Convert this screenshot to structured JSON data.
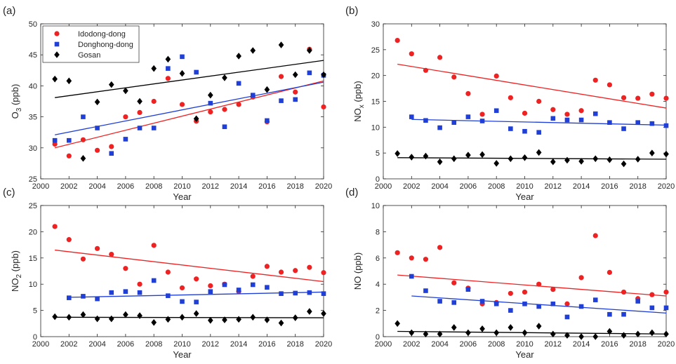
{
  "chart_data": [
    {
      "type": "scatter",
      "panel": "(a)",
      "xlabel": "Year",
      "ylabel": {
        "base": "O",
        "sub": "3",
        "rest": " (ppb)"
      },
      "xlim": [
        2000,
        2020
      ],
      "ylim": [
        25,
        50
      ],
      "xticks": [
        2000,
        2002,
        2004,
        2006,
        2008,
        2010,
        2012,
        2014,
        2016,
        2018,
        2020
      ],
      "yticks": [
        25,
        30,
        35,
        40,
        45,
        50
      ],
      "legend": {
        "position": "top-left"
      },
      "x": [
        2001,
        2002,
        2003,
        2004,
        2005,
        2006,
        2007,
        2008,
        2009,
        2010,
        2011,
        2012,
        2013,
        2014,
        2015,
        2016,
        2017,
        2018,
        2019,
        2020
      ],
      "series": [
        {
          "name": "Idodong-dong",
          "color": "#ee2222",
          "marker": "circle",
          "values": [
            30.6,
            28.7,
            31.3,
            29.6,
            30.2,
            35.0,
            35.7,
            37.5,
            41.2,
            37.0,
            34.3,
            35.8,
            36.2,
            37.0,
            38.2,
            34.2,
            41.5,
            39.0,
            45.9,
            36.6
          ],
          "trend": [
            30.0,
            40.8
          ]
        },
        {
          "name": "Donghong-dong",
          "color": "#1f3fd6",
          "marker": "square",
          "values": [
            31.2,
            31.2,
            35.0,
            33.2,
            29.1,
            31.4,
            33.2,
            33.2,
            42.8,
            44.7,
            42.2,
            37.2,
            33.4,
            40.4,
            38.5,
            34.4,
            37.6,
            37.8,
            42.1,
            41.7
          ],
          "trend": [
            32.1,
            40.6
          ]
        },
        {
          "name": "Gosan",
          "color": "#000000",
          "marker": "diamond",
          "values": [
            41.1,
            40.8,
            28.3,
            37.4,
            40.2,
            39.2,
            37.5,
            42.8,
            44.3,
            42.0,
            34.7,
            38.5,
            41.3,
            44.8,
            45.7,
            39.4,
            46.6,
            41.8,
            45.7,
            41.8
          ],
          "trend": [
            38.1,
            44.1
          ]
        }
      ]
    },
    {
      "type": "scatter",
      "panel": "(b)",
      "xlabel": "Year",
      "ylabel": {
        "base": "NO",
        "sub": "x",
        "rest": " (ppb)"
      },
      "xlim": [
        2000,
        2020
      ],
      "ylim": [
        0,
        30
      ],
      "xticks": [
        2000,
        2002,
        2004,
        2006,
        2008,
        2010,
        2012,
        2014,
        2016,
        2018,
        2020
      ],
      "yticks": [
        0,
        5,
        10,
        15,
        20,
        25,
        30
      ],
      "x": [
        2001,
        2002,
        2003,
        2004,
        2005,
        2006,
        2007,
        2008,
        2009,
        2010,
        2011,
        2012,
        2013,
        2014,
        2015,
        2016,
        2017,
        2018,
        2019,
        2020
      ],
      "series": [
        {
          "name": "Idodong-dong",
          "color": "#ee2222",
          "marker": "circle",
          "values": [
            26.8,
            24.2,
            21.0,
            23.5,
            19.7,
            16.5,
            12.5,
            19.9,
            15.7,
            12.7,
            15.0,
            13.4,
            12.5,
            13.2,
            19.1,
            18.2,
            15.7,
            15.6,
            16.4,
            15.6
          ],
          "trend": [
            22.2,
            13.7
          ]
        },
        {
          "name": "Donghong-dong",
          "color": "#1f3fd6",
          "marker": "square",
          "values": [
            null,
            12.0,
            11.3,
            9.9,
            10.9,
            12.0,
            11.2,
            13.2,
            9.7,
            9.2,
            9.0,
            11.7,
            11.4,
            11.4,
            12.6,
            10.9,
            9.7,
            10.9,
            10.7,
            10.3
          ],
          "trend": [
            11.5,
            10.4
          ],
          "trend_start": 2002
        },
        {
          "name": "Gosan",
          "color": "#000000",
          "marker": "diamond",
          "values": [
            4.9,
            4.2,
            4.4,
            3.3,
            3.9,
            4.6,
            4.7,
            3.0,
            3.9,
            4.1,
            5.1,
            3.3,
            3.6,
            3.4,
            3.9,
            3.7,
            2.9,
            3.8,
            5.0,
            4.8
          ],
          "trend": [
            4.1,
            3.8
          ]
        }
      ]
    },
    {
      "type": "scatter",
      "panel": "(c)",
      "xlabel": "Year",
      "ylabel": {
        "base": "NO",
        "sub": "2",
        "rest": " (ppb)"
      },
      "xlim": [
        2000,
        2020
      ],
      "ylim": [
        0,
        25
      ],
      "xticks": [
        2000,
        2002,
        2004,
        2006,
        2008,
        2010,
        2012,
        2014,
        2016,
        2018,
        2020
      ],
      "yticks": [
        0,
        5,
        10,
        15,
        20,
        25
      ],
      "x": [
        2001,
        2002,
        2003,
        2004,
        2005,
        2006,
        2007,
        2008,
        2009,
        2010,
        2011,
        2012,
        2013,
        2014,
        2015,
        2016,
        2017,
        2018,
        2019,
        2020
      ],
      "series": [
        {
          "name": "Idodong-dong",
          "color": "#ee2222",
          "marker": "circle",
          "values": [
            21.0,
            18.5,
            14.8,
            16.8,
            15.7,
            13.0,
            10.0,
            17.4,
            12.3,
            9.3,
            11.0,
            9.7,
            10.0,
            8.6,
            11.5,
            13.4,
            12.3,
            12.6,
            13.2,
            12.2
          ],
          "trend": [
            16.5,
            10.5
          ]
        },
        {
          "name": "Donghong-dong",
          "color": "#1f3fd6",
          "marker": "square",
          "values": [
            null,
            7.4,
            7.7,
            7.2,
            8.4,
            8.6,
            8.4,
            10.7,
            7.8,
            6.7,
            6.6,
            8.6,
            9.9,
            8.9,
            9.9,
            9.4,
            8.2,
            8.3,
            8.4,
            8.2
          ],
          "trend": [
            7.5,
            8.5
          ],
          "trend_start": 2002
        },
        {
          "name": "Gosan",
          "color": "#000000",
          "marker": "diamond",
          "values": [
            3.8,
            3.7,
            4.2,
            3.4,
            3.4,
            4.2,
            4.0,
            2.7,
            3.3,
            3.7,
            4.4,
            3.1,
            3.2,
            3.3,
            3.7,
            3.2,
            2.6,
            3.6,
            4.8,
            4.4
          ],
          "trend": [
            3.7,
            3.6
          ]
        }
      ]
    },
    {
      "type": "scatter",
      "panel": "(d)",
      "xlabel": "Year",
      "ylabel": {
        "base": "NO",
        "sub": "",
        "rest": " (ppb)"
      },
      "xlim": [
        2000,
        2020
      ],
      "ylim": [
        0,
        10
      ],
      "xticks": [
        2000,
        2002,
        2004,
        2006,
        2008,
        2010,
        2012,
        2014,
        2016,
        2018,
        2020
      ],
      "yticks": [
        0,
        2,
        4,
        6,
        8,
        10
      ],
      "x": [
        2001,
        2002,
        2003,
        2004,
        2005,
        2006,
        2007,
        2008,
        2009,
        2010,
        2011,
        2012,
        2013,
        2014,
        2015,
        2016,
        2017,
        2018,
        2019,
        2020
      ],
      "series": [
        {
          "name": "Idodong-dong",
          "color": "#ee2222",
          "marker": "circle",
          "values": [
            6.4,
            6.0,
            5.9,
            6.8,
            4.1,
            3.7,
            2.5,
            2.6,
            3.3,
            3.4,
            4.0,
            3.6,
            2.5,
            4.5,
            7.7,
            4.9,
            3.4,
            2.9,
            3.2,
            3.4
          ],
          "trend": [
            4.7,
            3.1
          ]
        },
        {
          "name": "Donghong-dong",
          "color": "#1f3fd6",
          "marker": "square",
          "values": [
            null,
            4.6,
            3.5,
            2.7,
            2.6,
            3.6,
            2.7,
            2.5,
            2.0,
            2.5,
            2.3,
            2.5,
            1.5,
            2.3,
            2.8,
            1.7,
            1.7,
            2.7,
            2.2,
            2.2
          ],
          "trend": [
            3.1,
            1.8
          ],
          "trend_start": 2002
        },
        {
          "name": "Gosan",
          "color": "#000000",
          "marker": "diamond",
          "values": [
            1.0,
            0.3,
            0.2,
            0.2,
            0.7,
            0.3,
            0.6,
            0.3,
            0.7,
            0.3,
            0.8,
            0.2,
            0.1,
            0.0,
            0.0,
            0.4,
            0.1,
            0.2,
            0.3,
            0.2
          ],
          "trend": [
            0.4,
            0.2
          ]
        }
      ]
    }
  ]
}
